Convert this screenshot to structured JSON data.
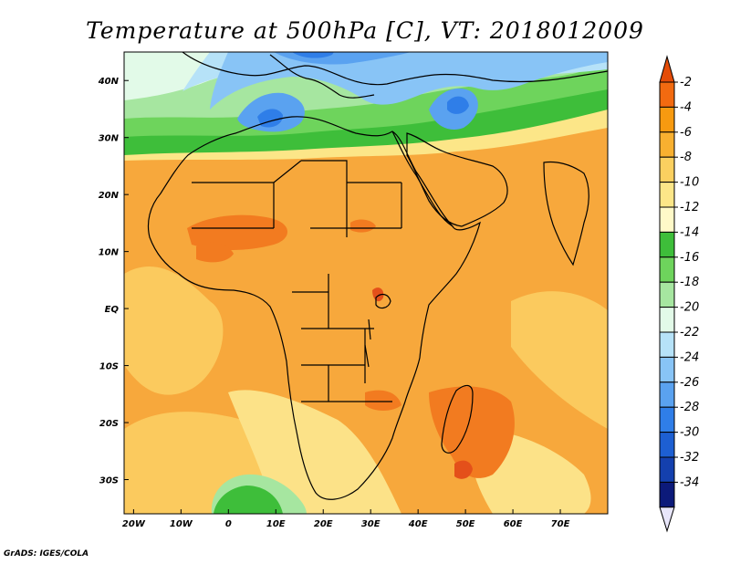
{
  "title": "Temperature at 500hPa [C], VT: 2018012009",
  "credit": "GrADS: IGES/COLA",
  "map": {
    "lon_range": [
      -22,
      80
    ],
    "lat_range": [
      -36,
      45
    ],
    "lon_ticks": [
      {
        "value": -20,
        "label": "20W"
      },
      {
        "value": -10,
        "label": "10W"
      },
      {
        "value": 0,
        "label": "0"
      },
      {
        "value": 10,
        "label": "10E"
      },
      {
        "value": 20,
        "label": "20E"
      },
      {
        "value": 30,
        "label": "30E"
      },
      {
        "value": 40,
        "label": "40E"
      },
      {
        "value": 50,
        "label": "50E"
      },
      {
        "value": 60,
        "label": "60E"
      },
      {
        "value": 70,
        "label": "70E"
      }
    ],
    "lat_ticks": [
      {
        "value": 40,
        "label": "40N"
      },
      {
        "value": 30,
        "label": "30N"
      },
      {
        "value": 20,
        "label": "20N"
      },
      {
        "value": 10,
        "label": "10N"
      },
      {
        "value": 0,
        "label": "EQ"
      },
      {
        "value": -10,
        "label": "10S"
      },
      {
        "value": -20,
        "label": "20S"
      },
      {
        "value": -30,
        "label": "30S"
      }
    ]
  },
  "colorbar": {
    "levels": [
      "-2",
      "-4",
      "-6",
      "-8",
      "-10",
      "-12",
      "-14",
      "-16",
      "-18",
      "-20",
      "-22",
      "-24",
      "-26",
      "-28",
      "-30",
      "-32",
      "-34"
    ],
    "colors": [
      "#f26a10",
      "#f79a10",
      "#f8b030",
      "#fbd060",
      "#fce688",
      "#fff9c8",
      "#3ebe3a",
      "#6ed45c",
      "#a6e6a0",
      "#e2fae8",
      "#b6e2f8",
      "#88c4f6",
      "#5aa2f0",
      "#2f7ee8",
      "#1d5fd2",
      "#1440ae",
      "#0c1a7a"
    ],
    "top_color": "#e44c08",
    "bottom_color": "#e8e6fa"
  }
}
